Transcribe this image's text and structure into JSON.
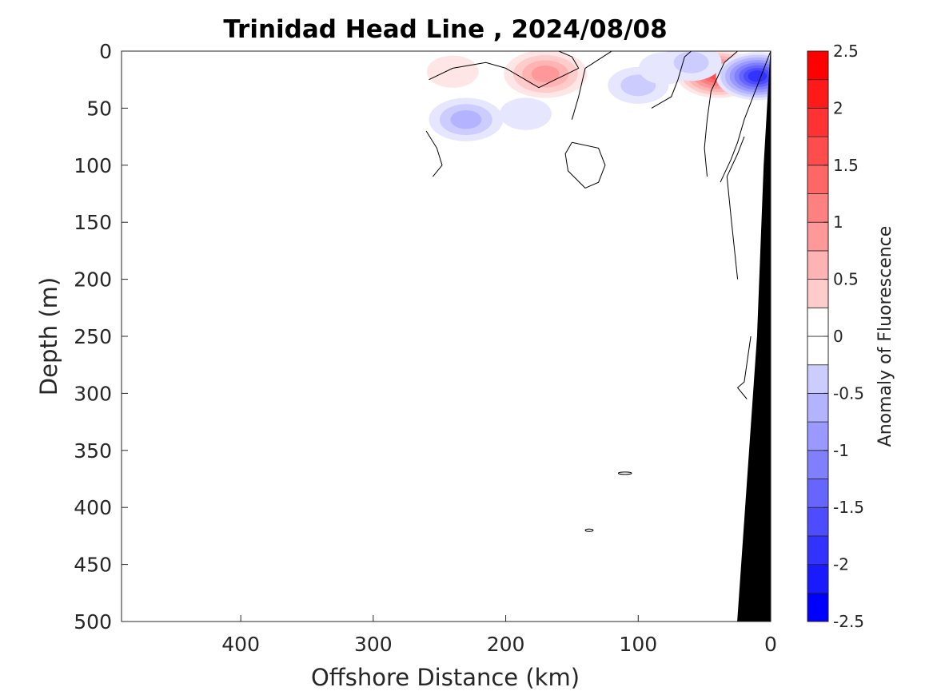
{
  "chart_data": {
    "type": "heatmap",
    "title": "Trinidad Head Line , 2024/08/08",
    "xlabel": "Offshore Distance (km)",
    "ylabel": "Depth (m)",
    "xlim": [
      490,
      0
    ],
    "ylim": [
      0,
      500
    ],
    "x_reversed": true,
    "y_reversed": true,
    "xticks": [
      400,
      300,
      200,
      100,
      0
    ],
    "yticks": [
      0,
      50,
      100,
      150,
      200,
      250,
      300,
      350,
      400,
      450,
      500
    ],
    "colorbar": {
      "label": "Anomaly of Fluorescence",
      "range": [
        -2.5,
        2.5
      ],
      "levels": [
        -2.5,
        -2.25,
        -2.0,
        -1.75,
        -1.5,
        -1.25,
        -1.0,
        -0.75,
        -0.5,
        -0.25,
        0,
        0.25,
        0.5,
        0.75,
        1.0,
        1.25,
        1.5,
        1.75,
        2.0,
        2.25,
        2.5
      ],
      "ticks": [
        2.5,
        2,
        1.5,
        1,
        0.5,
        0,
        -0.5,
        -1,
        -1.5,
        -2,
        -2.5
      ],
      "positive_color": "#ff0000",
      "negative_color": "#0000ff",
      "neutral_color": "#ffffff"
    },
    "anomaly_patches": [
      {
        "x": 170,
        "y": 20,
        "value": 1.0
      },
      {
        "x": 240,
        "y": 18,
        "value": 0.3
      },
      {
        "x": 40,
        "y": 20,
        "value": 1.9
      },
      {
        "x": 10,
        "y": 22,
        "value": -2.0
      },
      {
        "x": 230,
        "y": 60,
        "value": -0.8
      },
      {
        "x": 100,
        "y": 30,
        "value": -0.5
      },
      {
        "x": 80,
        "y": 15,
        "value": -0.3
      },
      {
        "x": 60,
        "y": 10,
        "value": -0.5
      },
      {
        "x": 185,
        "y": 55,
        "value": -0.3
      }
    ],
    "zero_contours": [
      [
        [
          258,
          25
        ],
        [
          240,
          15
        ],
        [
          215,
          10
        ],
        [
          200,
          15
        ],
        [
          175,
          32
        ],
        [
          145,
          15
        ],
        [
          150,
          5
        ],
        [
          160,
          0
        ]
      ],
      [
        [
          255,
          110
        ],
        [
          248,
          100
        ],
        [
          252,
          85
        ],
        [
          260,
          70
        ]
      ],
      [
        [
          150,
          60
        ],
        [
          145,
          40
        ],
        [
          140,
          15
        ],
        [
          120,
          0
        ]
      ],
      [
        [
          90,
          50
        ],
        [
          75,
          40
        ],
        [
          70,
          25
        ],
        [
          65,
          5
        ],
        [
          60,
          0
        ]
      ],
      [
        [
          48,
          110
        ],
        [
          50,
          85
        ],
        [
          48,
          60
        ],
        [
          45,
          35
        ],
        [
          35,
          10
        ],
        [
          25,
          0
        ]
      ],
      [
        [
          38,
          115
        ],
        [
          30,
          95
        ],
        [
          25,
          80
        ],
        [
          20,
          60
        ],
        [
          5,
          15
        ],
        [
          0,
          0
        ]
      ],
      [
        [
          150,
          80
        ],
        [
          130,
          85
        ],
        [
          125,
          100
        ],
        [
          130,
          115
        ],
        [
          140,
          120
        ],
        [
          153,
          105
        ],
        [
          155,
          90
        ],
        [
          150,
          80
        ]
      ],
      [
        [
          25,
          200
        ],
        [
          30,
          145
        ],
        [
          33,
          110
        ],
        [
          25,
          90
        ],
        [
          20,
          75
        ]
      ],
      [
        [
          15,
          250
        ],
        [
          20,
          290
        ],
        [
          25,
          295
        ],
        [
          18,
          305
        ]
      ]
    ],
    "small_contours": [
      {
        "x": 110,
        "y": 370,
        "w": 10,
        "h": 2
      },
      {
        "x": 137,
        "y": 420,
        "w": 6,
        "h": 1
      }
    ],
    "bathymetry": [
      [
        25,
        500
      ],
      [
        10,
        250
      ],
      [
        5,
        100
      ],
      [
        0,
        0
      ],
      [
        0,
        500
      ]
    ]
  }
}
